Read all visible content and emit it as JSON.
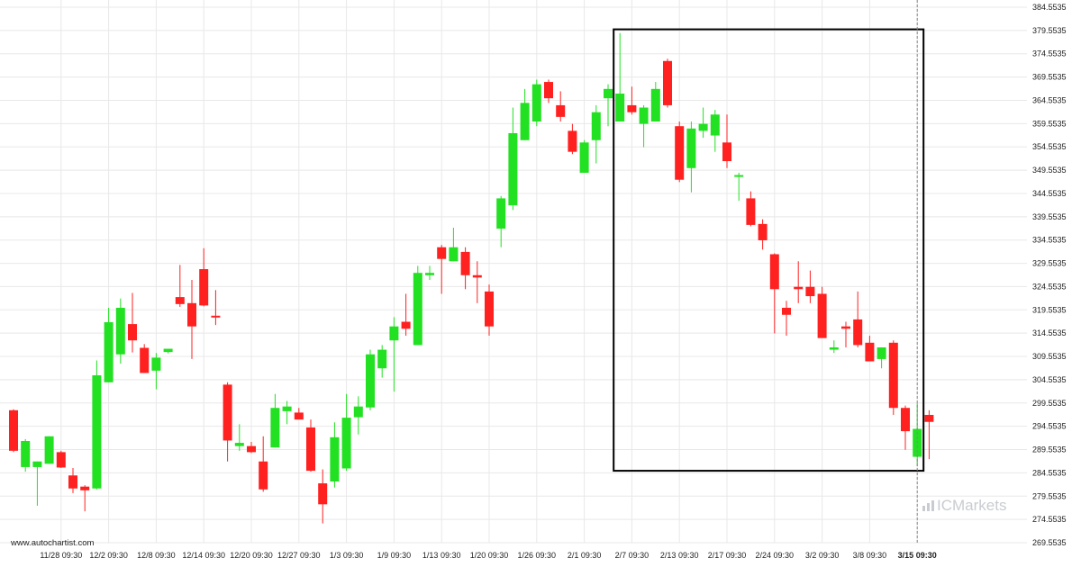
{
  "site_credit": "www.autochartist.com",
  "watermark": {
    "text": "ICMarkets"
  },
  "chart_data": {
    "type": "candlestick",
    "ylim": [
      269.5535,
      384.5535
    ],
    "y_ticks": [
      "269.5535",
      "274.5535",
      "279.5535",
      "284.5535",
      "289.5535",
      "294.5535",
      "299.5535",
      "304.5535",
      "309.5535",
      "314.5535",
      "319.5535",
      "324.5535",
      "329.5535",
      "334.5535",
      "339.5535",
      "344.5535",
      "349.5535",
      "354.5535",
      "359.5535",
      "364.5535",
      "369.5535",
      "374.5535",
      "379.5535",
      "384.5535"
    ],
    "x_ticks": [
      {
        "label": "11/28 09:30",
        "index": 4
      },
      {
        "label": "12/2 09:30",
        "index": 8
      },
      {
        "label": "12/8 09:30",
        "index": 12
      },
      {
        "label": "12/14 09:30",
        "index": 16
      },
      {
        "label": "12/20 09:30",
        "index": 20
      },
      {
        "label": "12/27 09:30",
        "index": 24
      },
      {
        "label": "1/3 09:30",
        "index": 28
      },
      {
        "label": "1/9 09:30",
        "index": 32
      },
      {
        "label": "1/13 09:30",
        "index": 36
      },
      {
        "label": "1/20 09:30",
        "index": 40
      },
      {
        "label": "1/26 09:30",
        "index": 44
      },
      {
        "label": "2/1 09:30",
        "index": 48
      },
      {
        "label": "2/7 09:30",
        "index": 52
      },
      {
        "label": "2/13 09:30",
        "index": 56
      },
      {
        "label": "2/17 09:30",
        "index": 60
      },
      {
        "label": "2/24 09:30",
        "index": 64
      },
      {
        "label": "3/2 09:30",
        "index": 68
      },
      {
        "label": "3/8 09:30",
        "index": 72
      },
      {
        "label": "3/15 09:30",
        "index": 76
      }
    ],
    "highlight_box": {
      "start_index": 51,
      "end_index": 76,
      "y_low": 285.0,
      "y_high": 379.8
    },
    "current_index": 76,
    "colors": {
      "up": "#22e022",
      "down": "#ff2020",
      "grid": "#e8e8e8",
      "box": "#000000",
      "text": "#222222"
    },
    "candles": [
      {
        "o": 298.0,
        "h": 298.2,
        "l": 289.0,
        "c": 289.3
      },
      {
        "o": 285.8,
        "h": 291.8,
        "l": 284.8,
        "c": 291.4
      },
      {
        "o": 285.8,
        "h": 287.0,
        "l": 277.5,
        "c": 287.0
      },
      {
        "o": 286.5,
        "h": 292.4,
        "l": 286.5,
        "c": 292.4
      },
      {
        "o": 289.0,
        "h": 289.3,
        "l": 285.6,
        "c": 285.7
      },
      {
        "o": 284.0,
        "h": 285.6,
        "l": 280.2,
        "c": 281.2
      },
      {
        "o": 281.6,
        "h": 281.9,
        "l": 276.3,
        "c": 280.8
      },
      {
        "o": 281.2,
        "h": 308.7,
        "l": 281.0,
        "c": 305.5
      },
      {
        "o": 304.0,
        "h": 320.0,
        "l": 304.0,
        "c": 316.9
      },
      {
        "o": 310.0,
        "h": 322.0,
        "l": 308.0,
        "c": 320.0
      },
      {
        "o": 316.5,
        "h": 323.2,
        "l": 310.4,
        "c": 313.0
      },
      {
        "o": 311.4,
        "h": 312.2,
        "l": 306.0,
        "c": 306.0
      },
      {
        "o": 306.5,
        "h": 310.3,
        "l": 302.5,
        "c": 309.3
      },
      {
        "o": 310.5,
        "h": 311.0,
        "l": 310.2,
        "c": 311.2
      },
      {
        "o": 322.3,
        "h": 329.2,
        "l": 320.2,
        "c": 320.8
      },
      {
        "o": 321.0,
        "h": 326.0,
        "l": 309.0,
        "c": 316.0
      },
      {
        "o": 328.3,
        "h": 332.8,
        "l": 320.3,
        "c": 320.5
      },
      {
        "o": 318.3,
        "h": 323.8,
        "l": 316.3,
        "c": 318.0
      },
      {
        "o": 303.5,
        "h": 304.0,
        "l": 287.0,
        "c": 291.5
      },
      {
        "o": 290.3,
        "h": 295.0,
        "l": 289.3,
        "c": 291.0
      },
      {
        "o": 290.3,
        "h": 291.2,
        "l": 288.8,
        "c": 289.0
      },
      {
        "o": 287.0,
        "h": 292.4,
        "l": 280.5,
        "c": 281.0
      },
      {
        "o": 290.0,
        "h": 301.5,
        "l": 290.0,
        "c": 298.5
      },
      {
        "o": 297.8,
        "h": 300.0,
        "l": 295.0,
        "c": 298.8
      },
      {
        "o": 297.5,
        "h": 298.5,
        "l": 296.5,
        "c": 296.0
      },
      {
        "o": 294.3,
        "h": 296.0,
        "l": 284.8,
        "c": 285.0
      },
      {
        "o": 282.3,
        "h": 285.3,
        "l": 273.7,
        "c": 277.8
      },
      {
        "o": 282.7,
        "h": 295.4,
        "l": 281.4,
        "c": 292.2
      },
      {
        "o": 285.5,
        "h": 301.5,
        "l": 285.0,
        "c": 296.4
      },
      {
        "o": 296.5,
        "h": 301.0,
        "l": 292.8,
        "c": 298.8
      },
      {
        "o": 298.6,
        "h": 311.0,
        "l": 298.0,
        "c": 310.0
      },
      {
        "o": 307.0,
        "h": 312.0,
        "l": 305.0,
        "c": 311.0
      },
      {
        "o": 313.0,
        "h": 318.0,
        "l": 302.0,
        "c": 316.0
      },
      {
        "o": 317.0,
        "h": 323.0,
        "l": 314.0,
        "c": 315.5
      },
      {
        "o": 312.0,
        "h": 329.0,
        "l": 312.0,
        "c": 327.5
      },
      {
        "o": 327.0,
        "h": 329.0,
        "l": 326.0,
        "c": 327.5
      },
      {
        "o": 333.0,
        "h": 333.5,
        "l": 323.0,
        "c": 330.5
      },
      {
        "o": 330.0,
        "h": 337.2,
        "l": 330.0,
        "c": 333.0
      },
      {
        "o": 332.0,
        "h": 333.0,
        "l": 324.0,
        "c": 327.0
      },
      {
        "o": 327.0,
        "h": 330.0,
        "l": 321.0,
        "c": 326.5
      },
      {
        "o": 323.5,
        "h": 325.0,
        "l": 314.0,
        "c": 316.0
      },
      {
        "o": 337.0,
        "h": 344.0,
        "l": 333.0,
        "c": 343.5
      },
      {
        "o": 342.0,
        "h": 363.0,
        "l": 341.0,
        "c": 357.5
      },
      {
        "o": 356.0,
        "h": 367.0,
        "l": 356.0,
        "c": 364.0
      },
      {
        "o": 360.0,
        "h": 369.0,
        "l": 359.0,
        "c": 368.0
      },
      {
        "o": 368.5,
        "h": 369.0,
        "l": 364.0,
        "c": 365.0
      },
      {
        "o": 363.5,
        "h": 366.5,
        "l": 360.0,
        "c": 361.0
      },
      {
        "o": 358.0,
        "h": 359.5,
        "l": 353.0,
        "c": 353.5
      },
      {
        "o": 349.0,
        "h": 356.0,
        "l": 349.0,
        "c": 355.5
      },
      {
        "o": 356.0,
        "h": 363.5,
        "l": 351.0,
        "c": 362.0
      },
      {
        "o": 365.0,
        "h": 368.0,
        "l": 359.0,
        "c": 367.0
      },
      {
        "o": 360.0,
        "h": 379.0,
        "l": 360.0,
        "c": 366.0
      },
      {
        "o": 363.5,
        "h": 367.5,
        "l": 361.5,
        "c": 362.0
      },
      {
        "o": 359.5,
        "h": 363.5,
        "l": 354.5,
        "c": 363.0
      },
      {
        "o": 360.0,
        "h": 368.5,
        "l": 360.0,
        "c": 367.0
      },
      {
        "o": 373.0,
        "h": 373.5,
        "l": 363.0,
        "c": 363.5
      },
      {
        "o": 359.0,
        "h": 360.0,
        "l": 347.0,
        "c": 347.5
      },
      {
        "o": 350.0,
        "h": 360.0,
        "l": 344.8,
        "c": 358.5
      },
      {
        "o": 358.0,
        "h": 363.0,
        "l": 356.5,
        "c": 359.5
      },
      {
        "o": 357.0,
        "h": 362.5,
        "l": 353.5,
        "c": 361.5
      },
      {
        "o": 355.5,
        "h": 361.5,
        "l": 350.0,
        "c": 351.5
      },
      {
        "o": 348.5,
        "h": 349.0,
        "l": 343.0,
        "c": 348.5
      },
      {
        "o": 343.5,
        "h": 345.0,
        "l": 337.5,
        "c": 337.8
      },
      {
        "o": 338.0,
        "h": 339.0,
        "l": 332.5,
        "c": 334.5
      },
      {
        "o": 331.5,
        "h": 331.7,
        "l": 314.5,
        "c": 324.0
      },
      {
        "o": 320.0,
        "h": 321.5,
        "l": 314.0,
        "c": 318.5
      },
      {
        "o": 324.5,
        "h": 330.0,
        "l": 321.0,
        "c": 324.0
      },
      {
        "o": 324.5,
        "h": 328.0,
        "l": 321.0,
        "c": 322.5
      },
      {
        "o": 323.0,
        "h": 324.5,
        "l": 314.0,
        "c": 313.5
      },
      {
        "o": 311.0,
        "h": 313.0,
        "l": 310.3,
        "c": 311.5
      },
      {
        "o": 316.0,
        "h": 317.0,
        "l": 311.5,
        "c": 315.5
      },
      {
        "o": 317.5,
        "h": 323.5,
        "l": 311.5,
        "c": 312.0
      },
      {
        "o": 312.5,
        "h": 314.0,
        "l": 308.5,
        "c": 308.5
      },
      {
        "o": 309.0,
        "h": 311.5,
        "l": 307.0,
        "c": 311.5
      },
      {
        "o": 312.5,
        "h": 313.0,
        "l": 297.0,
        "c": 298.5
      },
      {
        "o": 298.5,
        "h": 299.0,
        "l": 289.5,
        "c": 293.5
      },
      {
        "o": 288.0,
        "h": 299.5,
        "l": 286.0,
        "c": 294.0
      },
      {
        "o": 297.0,
        "h": 298.0,
        "l": 287.5,
        "c": 295.5
      }
    ]
  }
}
